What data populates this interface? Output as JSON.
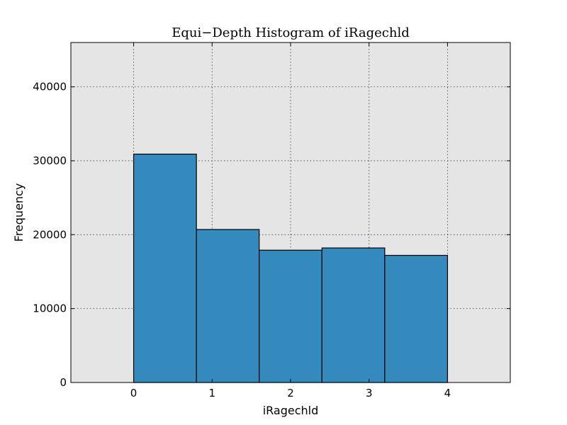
{
  "chart_data": {
    "type": "bar",
    "title": "Equi−Depth Histogram of iRagechld",
    "xlabel": "iRagechld",
    "ylabel": "Frequency",
    "xlim": [
      -0.8,
      4.8
    ],
    "ylim": [
      0,
      46000
    ],
    "xticks": [
      0,
      1,
      2,
      3,
      4
    ],
    "yticks": [
      0,
      10000,
      20000,
      30000,
      40000
    ],
    "grid": true,
    "bins": [
      {
        "start": 0.0,
        "end": 0.8,
        "value": 30900
      },
      {
        "start": 0.8,
        "end": 1.6,
        "value": 20700
      },
      {
        "start": 1.6,
        "end": 2.4,
        "value": 17900
      },
      {
        "start": 2.4,
        "end": 3.2,
        "value": 18200
      },
      {
        "start": 3.2,
        "end": 4.0,
        "value": 17200
      }
    ],
    "colors": {
      "bar": "#348abd",
      "plot_background": "#e5e5e5"
    }
  }
}
